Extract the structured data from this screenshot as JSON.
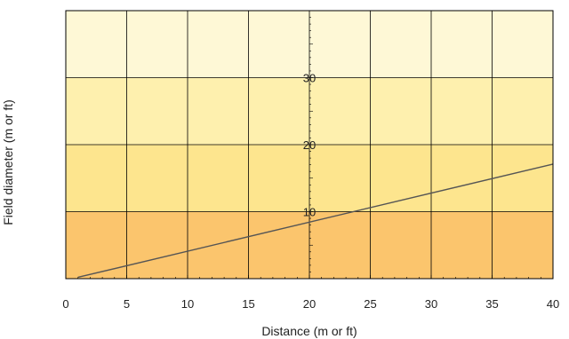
{
  "chart_data": {
    "type": "line",
    "xlabel": "Distance (m or ft)",
    "ylabel": "Field diameter (m or ft)",
    "xlim": [
      0,
      40
    ],
    "ylim": [
      0,
      40
    ],
    "x_ticks": [
      "0",
      "5",
      "10",
      "15",
      "20",
      "25",
      "30",
      "35",
      "40"
    ],
    "y_ticks": [
      "10",
      "20",
      "30"
    ],
    "grid": true,
    "bands": [
      {
        "from": 0,
        "to": 10,
        "color": "#FBC56D"
      },
      {
        "from": 10,
        "to": 20,
        "color": "#FDE58E"
      },
      {
        "from": 20,
        "to": 30,
        "color": "#FEF0AE"
      },
      {
        "from": 30,
        "to": 40,
        "color": "#FEF8D6"
      }
    ],
    "series": [
      {
        "x": [
          1,
          40
        ],
        "y": [
          0.2,
          17.1
        ],
        "color": "#555555"
      }
    ]
  }
}
